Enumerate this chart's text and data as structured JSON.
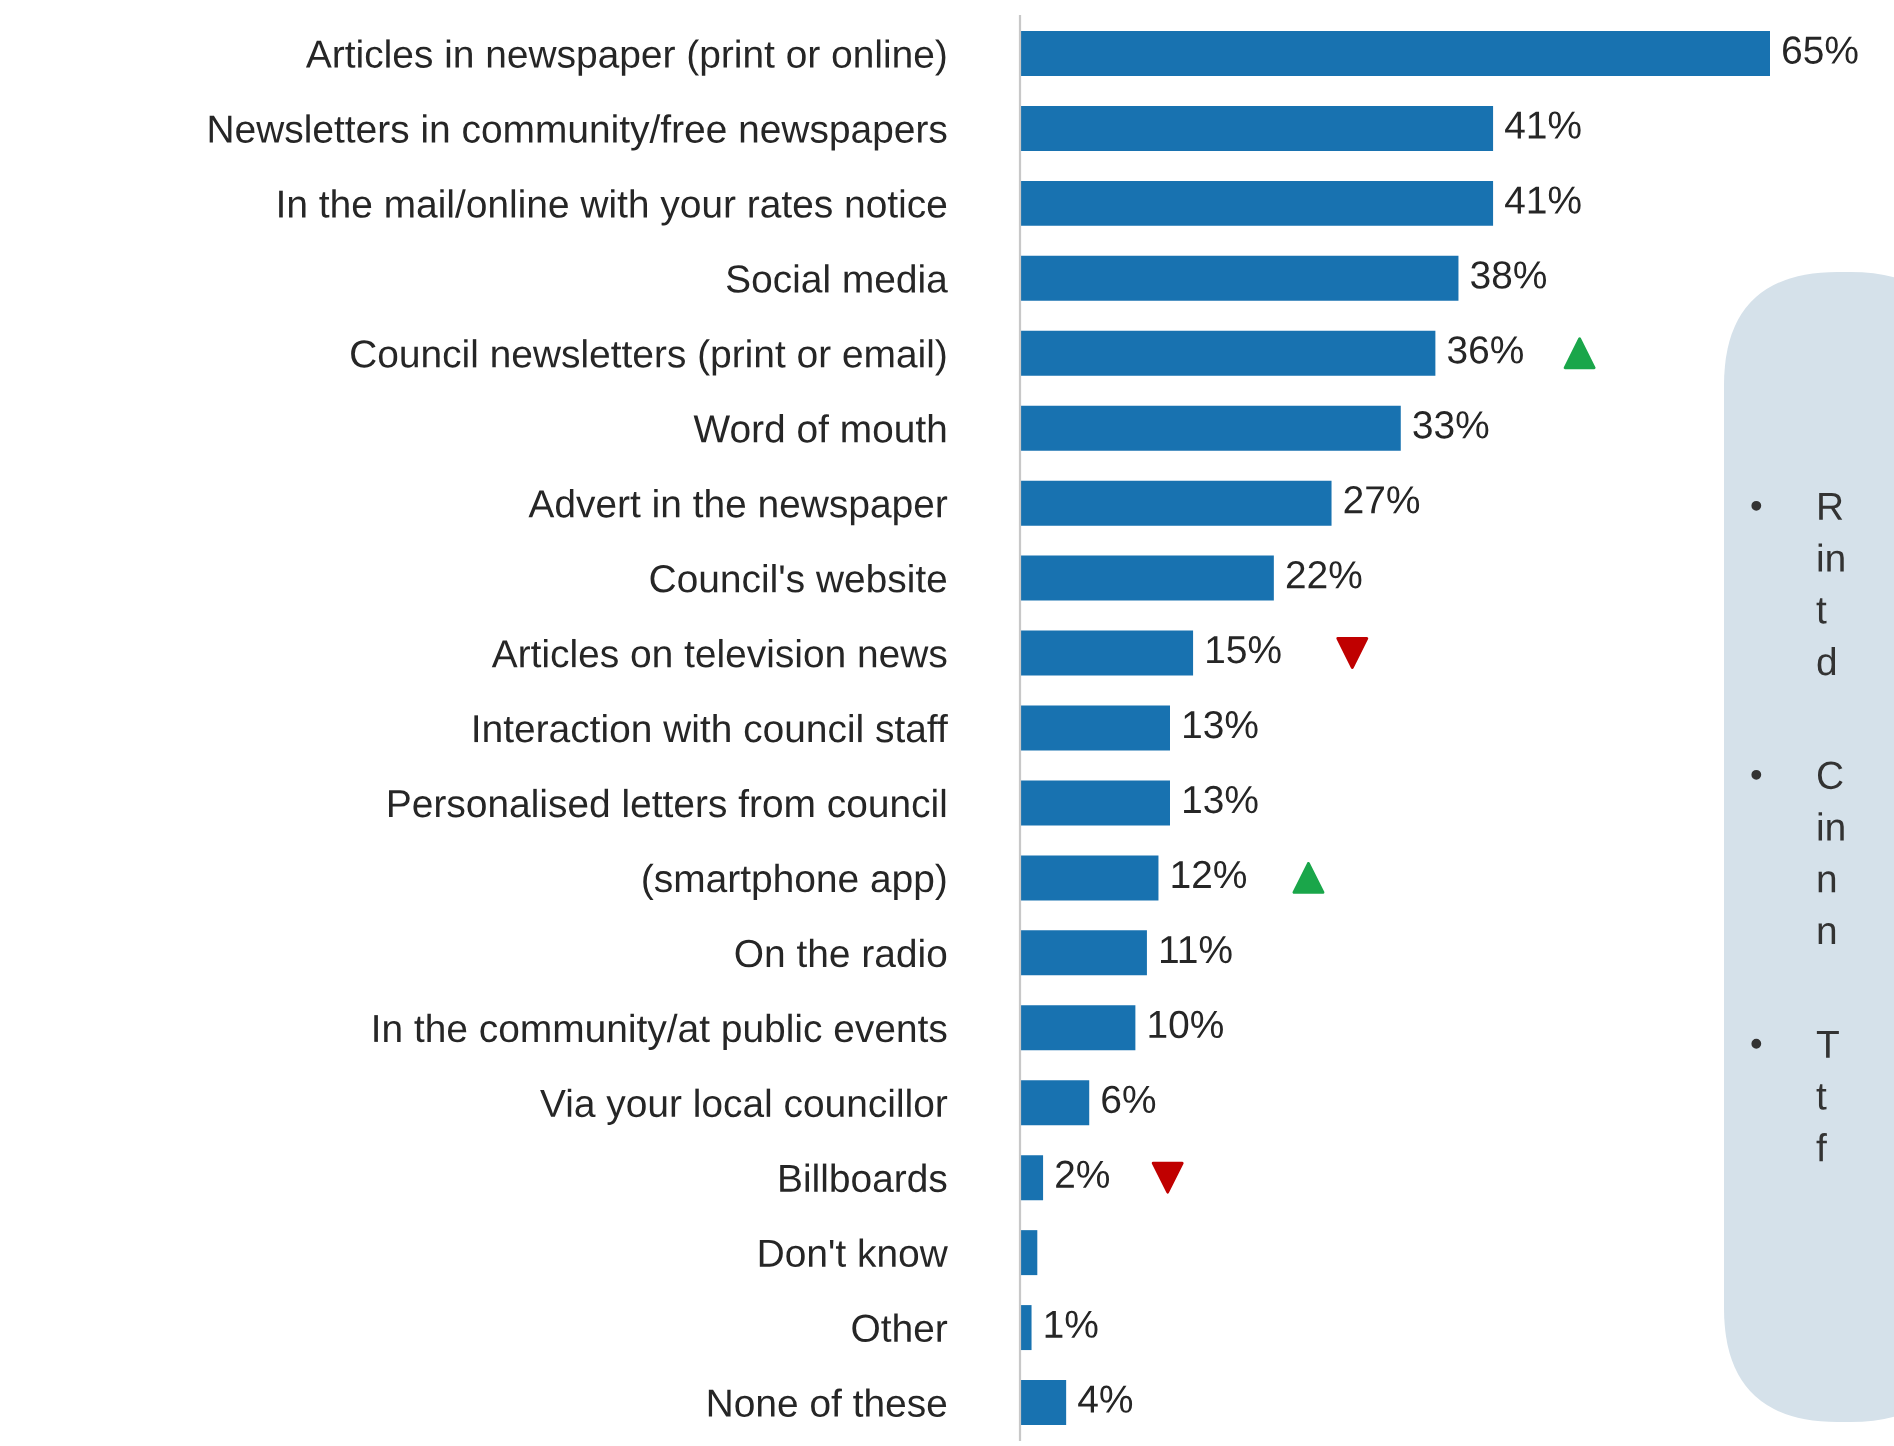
{
  "chart_data": {
    "type": "bar",
    "orientation": "horizontal",
    "categories": [
      "Articles in newspaper (print or online)",
      "Newsletters in community/free newspapers",
      "In the mail/online with your rates notice",
      "Social media",
      "Council newsletters (print or email)",
      "Word of mouth",
      "Advert in the newspaper",
      "Council's website",
      "Articles on television news",
      "Interaction with council staff",
      "Personalised letters from council",
      "(smartphone app)",
      "On the radio",
      "In the community/at public events",
      "Via your local councillor",
      "Billboards",
      "Don't know",
      "Other",
      "None of these"
    ],
    "values": [
      65,
      41,
      41,
      38,
      36,
      33,
      27,
      22,
      15,
      13,
      13,
      12,
      11,
      10,
      6,
      2,
      1.5,
      1,
      4
    ],
    "value_labels": [
      "65%",
      "41%",
      "41%",
      "38%",
      "36%",
      "33%",
      "27%",
      "22%",
      "15%",
      "13%",
      "13%",
      "12%",
      "11%",
      "10%",
      "6%",
      "2%",
      null,
      "1%",
      "4%"
    ],
    "color": "#1872b0",
    "xlim": [
      0,
      65
    ],
    "tick_labels": "y",
    "series": [
      {
        "type": "scatter",
        "marker": "triangle",
        "color": "#1aa64a",
        "values": [
          null,
          null,
          null,
          null,
          48.5,
          null,
          null,
          null,
          null,
          null,
          null,
          25,
          null,
          null,
          null,
          null,
          null,
          null,
          null
        ]
      },
      {
        "type": "scatter",
        "marker": "triangle_down",
        "color": "#c00000",
        "values": [
          null,
          null,
          null,
          null,
          null,
          null,
          null,
          null,
          28.8,
          null,
          null,
          null,
          null,
          null,
          null,
          12.8,
          null,
          null,
          null
        ]
      }
    ],
    "annotations": [
      "• R\nin\nt\nd",
      "• C\nin\nn\nn",
      "• T\nt\nf"
    ]
  }
}
